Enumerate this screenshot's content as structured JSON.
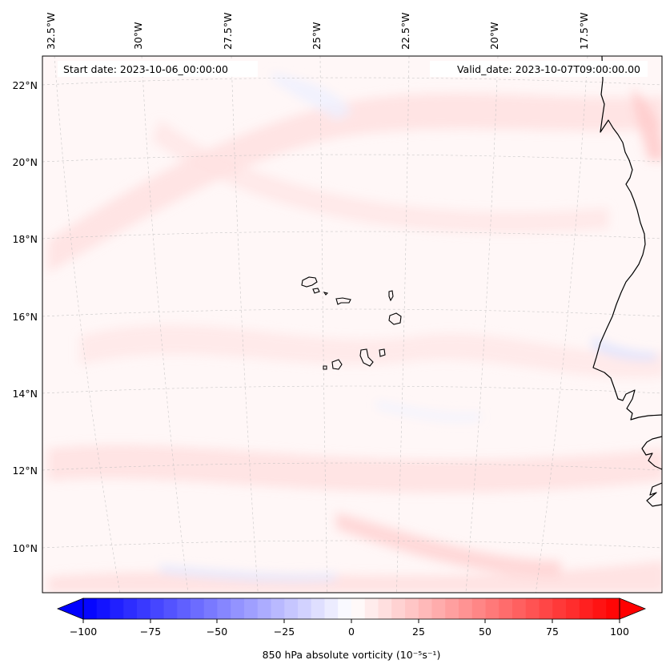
{
  "map": {
    "start_date": "Start date: 2023-10-06_00:00:00",
    "valid_date": "Valid_date: 2023-10-07T09:00:00.00",
    "lon_labels": [
      "32.5°W",
      "30°W",
      "27.5°W",
      "25°W",
      "22.5°W",
      "20°W",
      "17.5°W"
    ],
    "lat_labels": [
      "22°N",
      "20°N",
      "18°N",
      "16°N",
      "14°N",
      "12°N",
      "10°N"
    ],
    "field": "850 hPa absolute vorticity",
    "colormap": "bwr",
    "colors": {
      "negative": "#0000ff",
      "neutral": "#ffffff",
      "positive": "#ff0000",
      "coastline": "#000000"
    }
  },
  "colorbar": {
    "min": -100,
    "max": 100,
    "extend": "both",
    "ticks": [
      "−100",
      "−75",
      "−50",
      "−25",
      "0",
      "25",
      "50",
      "75",
      "100"
    ],
    "label": "850 hPa absolute vorticity (10⁻⁵s⁻¹)"
  }
}
